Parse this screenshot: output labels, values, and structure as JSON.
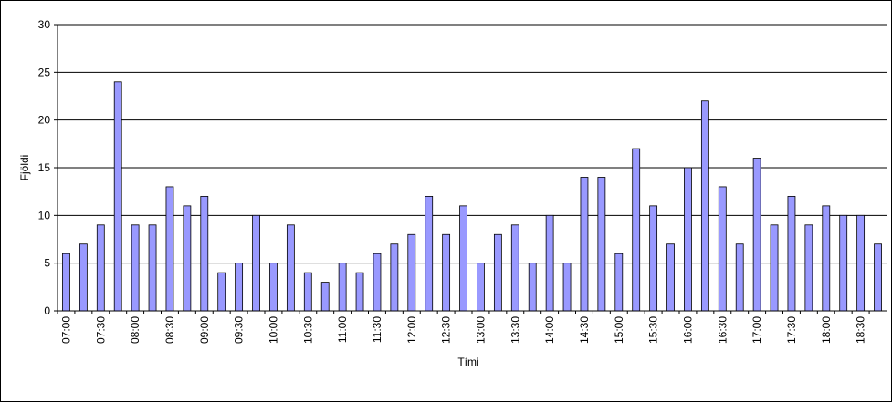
{
  "chart_data": {
    "type": "bar",
    "x_label": "Tími",
    "y_label": "Fjöldi",
    "categories": [
      "07:00",
      null,
      "07:30",
      null,
      "08:00",
      null,
      "08:30",
      null,
      "09:00",
      null,
      "09:30",
      null,
      "10:00",
      null,
      "10:30",
      null,
      "11:00",
      null,
      "11:30",
      null,
      "12:00",
      null,
      "12:30",
      null,
      "13:00",
      null,
      "13:30",
      null,
      "14:00",
      null,
      "14:30",
      null,
      "15:00",
      null,
      "15:30",
      null,
      "16:00",
      null,
      "16:30",
      null,
      "17:00",
      null,
      "17:30",
      null,
      "18:00",
      null,
      "18:30",
      null
    ],
    "values": [
      6,
      7,
      9,
      24,
      9,
      9,
      13,
      11,
      12,
      4,
      5,
      10,
      5,
      9,
      4,
      3,
      5,
      4,
      6,
      7,
      8,
      12,
      8,
      11,
      5,
      8,
      9,
      5,
      10,
      5,
      14,
      14,
      6,
      17,
      11,
      7,
      15,
      22,
      13,
      7,
      16,
      9,
      12,
      9,
      11,
      10,
      10,
      7
    ],
    "color": "#9999ff",
    "ylim": [
      0,
      30
    ],
    "yticks": [
      0,
      5,
      10,
      15,
      20,
      25,
      30
    ],
    "grid": true
  }
}
